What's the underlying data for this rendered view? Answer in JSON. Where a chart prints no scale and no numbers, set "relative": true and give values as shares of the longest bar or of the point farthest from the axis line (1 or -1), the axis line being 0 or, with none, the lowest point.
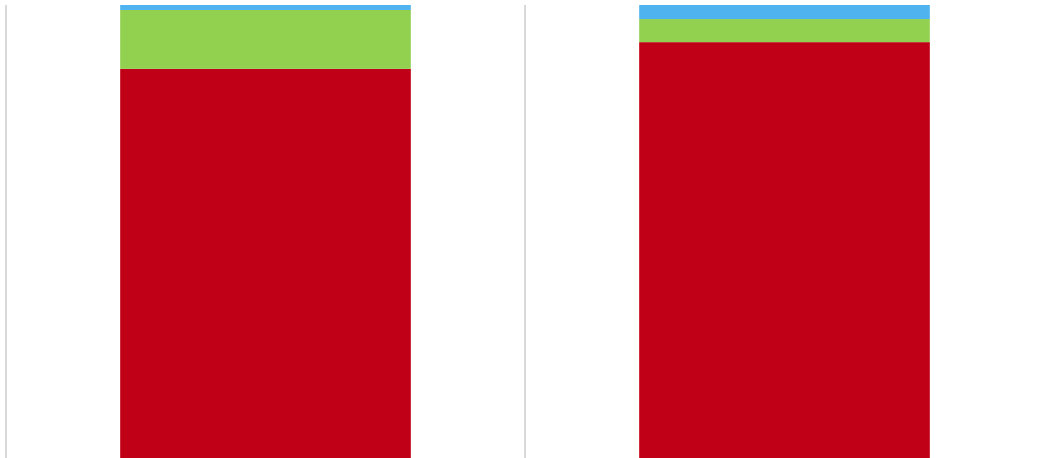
{
  "chart_data": {
    "type": "bar",
    "stacked": true,
    "relative": true,
    "grid": "x",
    "categories": [
      null,
      null
    ],
    "series": [
      {
        "color": "#c00016",
        "values": [
          0.859,
          0.918
        ]
      },
      {
        "color": "#92d050",
        "values": [
          0.13,
          0.051
        ]
      },
      {
        "color": "#4fb3ef",
        "values": [
          0.011,
          0.031
        ]
      }
    ]
  }
}
